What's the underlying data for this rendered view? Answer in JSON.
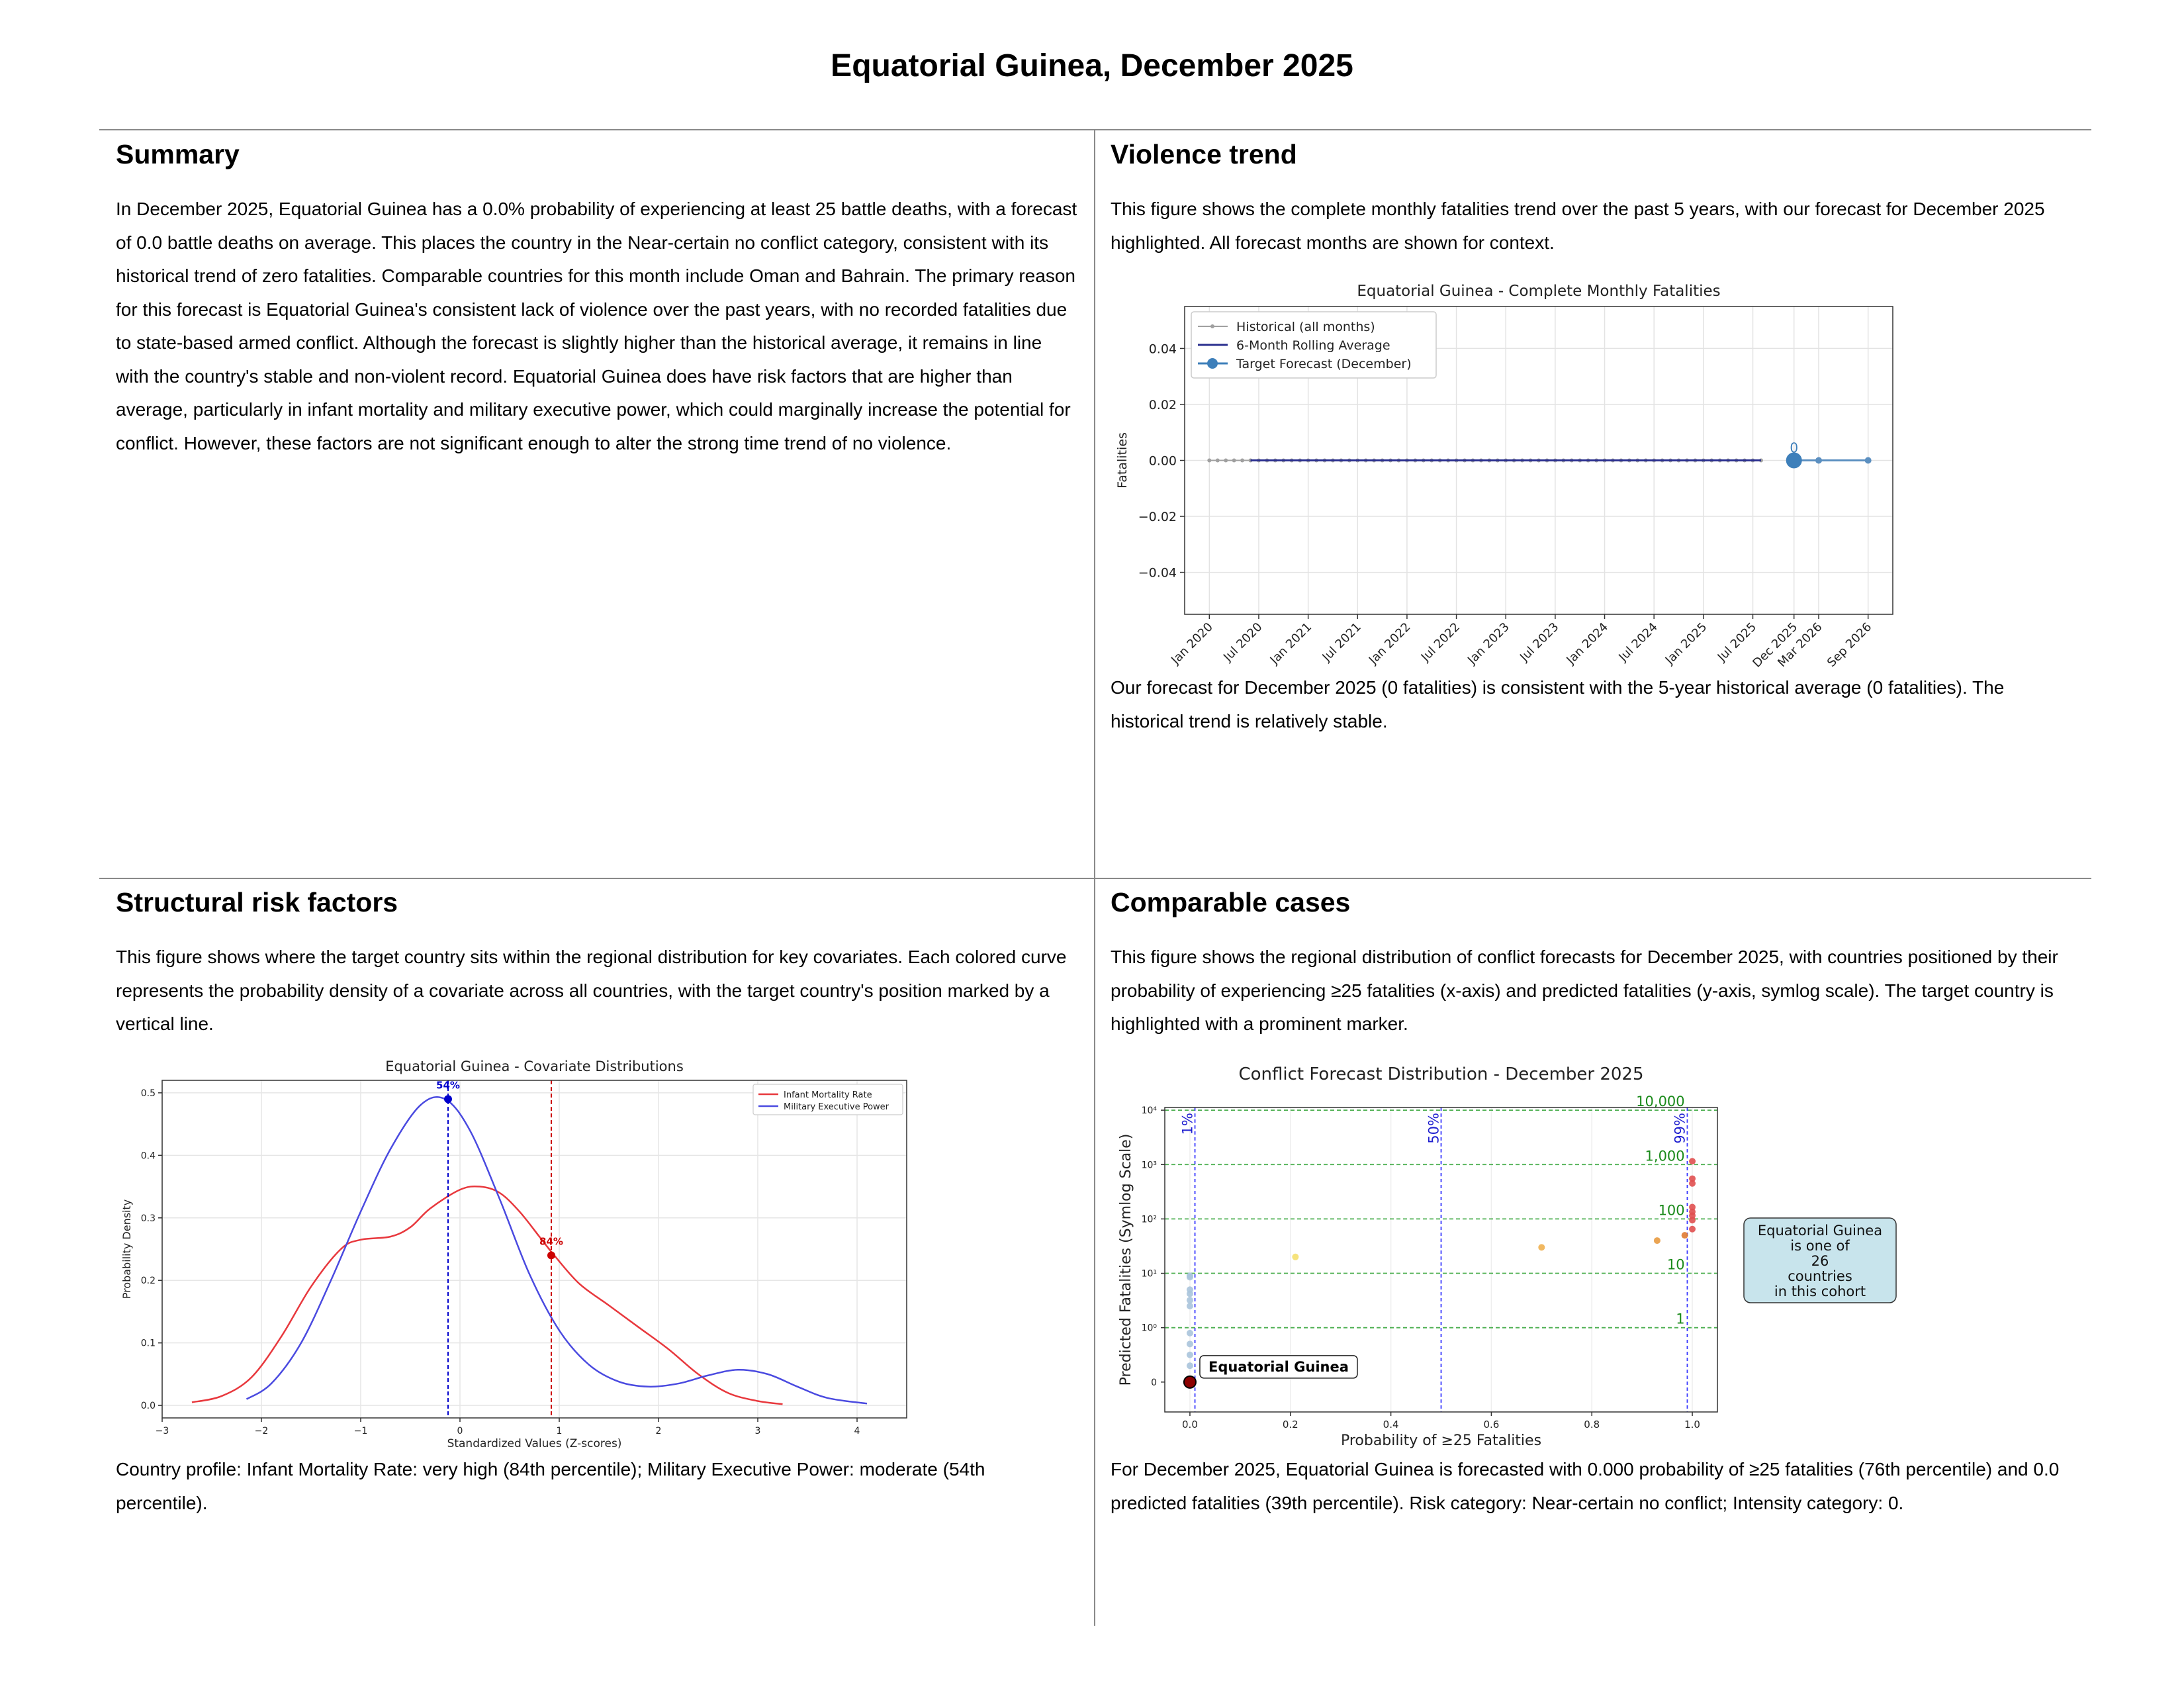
{
  "page_title": "Equatorial Guinea, December 2025",
  "summary": {
    "heading": "Summary",
    "text": "In December 2025, Equatorial Guinea has a 0.0% probability of experiencing at least 25 battle deaths, with a forecast of 0.0 battle deaths on average. This places the country in the Near-certain no conflict category, consistent with its historical trend of zero fatalities. Comparable countries for this month include Oman and Bahrain. The primary reason for this forecast is Equatorial Guinea's consistent lack of violence over the past years, with no recorded fatalities due to state-based armed conflict. Although the forecast is slightly higher than the historical average, it remains in line with the country's stable and non-violent record. Equatorial Guinea does have risk factors that are higher than average, particularly in infant mortality and military executive power, which could marginally increase the potential for conflict. However, these factors are not significant enough to alter the strong time trend of no violence."
  },
  "violence": {
    "heading": "Violence trend",
    "intro": "This figure shows the complete monthly fatalities trend over the past 5 years, with our forecast for December 2025 highlighted. All forecast months are shown for context.",
    "caption": "Our forecast for December 2025 (0 fatalities) is consistent with the 5-year historical average (0 fatalities). The historical trend is relatively stable."
  },
  "structural": {
    "heading": "Structural risk factors",
    "intro": "This figure shows where the target country sits within the regional distribution for key covariates. Each colored curve represents the probability density of a covariate across all countries, with the target country's position marked by a vertical line.",
    "caption": "Country profile: Infant Mortality Rate: very high (84th percentile); Military Executive Power: moderate (54th percentile)."
  },
  "comparable": {
    "heading": "Comparable cases",
    "intro": "This figure shows the regional distribution of conflict forecasts for December 2025, with countries positioned by their probability of experiencing ≥25 fatalities (x-axis) and predicted fatalities (y-axis, symlog scale). The target country is highlighted with a prominent marker.",
    "caption": "For December 2025, Equatorial Guinea is forecasted with 0.000 probability of ≥25 fatalities (76th percentile) and 0.0 predicted fatalities (39th percentile). Risk category: Near-certain no conflict; Intensity category: 0."
  },
  "chart_data": [
    {
      "type": "line",
      "title": "Equatorial Guinea - Complete Monthly Fatalities",
      "ylabel": "Fatalities",
      "ylim": [
        -0.055,
        0.055
      ],
      "yticks": [
        -0.04,
        -0.02,
        0.0,
        0.02,
        0.04
      ],
      "ytick_labels": [
        "−0.04",
        "−0.02",
        "0.00",
        "0.02",
        "0.04"
      ],
      "xticks": [
        "Jan 2020",
        "Jul 2020",
        "Jan 2021",
        "Jul 2021",
        "Jan 2022",
        "Jul 2022",
        "Jan 2023",
        "Jul 2023",
        "Jan 2024",
        "Jul 2024",
        "Jan 2025",
        "Jul 2025",
        "Dec 2025",
        "Mar 2026",
        "Sep 2026"
      ],
      "xtick_months": [
        0,
        6,
        12,
        18,
        24,
        30,
        36,
        42,
        48,
        54,
        60,
        66,
        71,
        74,
        80
      ],
      "grid": true,
      "legend": "upper-left",
      "legend_entries": [
        "Historical (all months)",
        "6-Month Rolling Average",
        "Target Forecast (December)"
      ],
      "historical": {
        "start_month": 0,
        "end_month": 67,
        "value": 0
      },
      "rolling_average": {
        "start_month": 5,
        "end_month": 67,
        "value": 0
      },
      "forecast": {
        "months": [
          71,
          74,
          80
        ],
        "values": [
          0,
          0,
          0
        ]
      },
      "target": {
        "month": 71,
        "value": 0,
        "label": "0"
      },
      "colors": {
        "historical": "#a0a0a0",
        "rolling": "#2a2f8f",
        "forecast": "#5b8fc0",
        "target": "#3d7fba"
      }
    },
    {
      "type": "line",
      "title": "Equatorial Guinea - Covariate Distributions",
      "xlabel": "Standardized Values (Z-scores)",
      "ylabel": "Probability Density",
      "xlim": [
        -3,
        4.5
      ],
      "ylim": [
        -0.02,
        0.52
      ],
      "xticks": [
        -3,
        -2,
        -1,
        0,
        1,
        2,
        3,
        4
      ],
      "xtick_labels": [
        "−3",
        "−2",
        "−1",
        "0",
        "1",
        "2",
        "3",
        "4"
      ],
      "yticks": [
        0.0,
        0.1,
        0.2,
        0.3,
        0.4,
        0.5
      ],
      "ytick_labels": [
        "0.0",
        "0.1",
        "0.2",
        "0.3",
        "0.4",
        "0.5"
      ],
      "grid": true,
      "legend": "upper-right",
      "series": [
        {
          "name": "Infant Mortality Rate",
          "color": "#e8383d",
          "x": [
            -2.7,
            -2.4,
            -2.1,
            -1.8,
            -1.5,
            -1.2,
            -1.0,
            -0.7,
            -0.5,
            -0.3,
            0.0,
            0.2,
            0.4,
            0.6,
            0.8,
            0.95,
            1.2,
            1.5,
            1.8,
            2.1,
            2.4,
            2.7,
            3.0,
            3.25
          ],
          "y": [
            0.005,
            0.015,
            0.045,
            0.11,
            0.19,
            0.25,
            0.265,
            0.27,
            0.285,
            0.315,
            0.345,
            0.35,
            0.34,
            0.31,
            0.27,
            0.24,
            0.195,
            0.16,
            0.125,
            0.09,
            0.05,
            0.02,
            0.007,
            0.002
          ]
        },
        {
          "name": "Military Executive Power",
          "color": "#4a4ae0",
          "x": [
            -2.15,
            -1.9,
            -1.6,
            -1.3,
            -1.0,
            -0.7,
            -0.4,
            -0.15,
            0.1,
            0.4,
            0.7,
            1.0,
            1.3,
            1.6,
            1.9,
            2.2,
            2.5,
            2.8,
            3.1,
            3.4,
            3.7,
            4.1
          ],
          "y": [
            0.01,
            0.035,
            0.1,
            0.2,
            0.31,
            0.41,
            0.48,
            0.49,
            0.44,
            0.33,
            0.21,
            0.12,
            0.065,
            0.038,
            0.03,
            0.035,
            0.048,
            0.057,
            0.05,
            0.03,
            0.012,
            0.003
          ]
        }
      ],
      "markers": [
        {
          "series": "Military Executive Power",
          "x": -0.12,
          "y": 0.49,
          "label": "54%",
          "color": "#0000cc"
        },
        {
          "series": "Infant Mortality Rate",
          "x": 0.92,
          "y": 0.24,
          "label": "84%",
          "color": "#cc0000"
        }
      ]
    },
    {
      "type": "scatter",
      "title": "Conflict Forecast Distribution - December 2025",
      "xlabel": "Probability of ≥25 Fatalities",
      "ylabel": "Predicted Fatalities (Symlog Scale)",
      "xlim": [
        -0.05,
        1.05
      ],
      "xticks": [
        0.0,
        0.2,
        0.4,
        0.6,
        0.8,
        1.0
      ],
      "xtick_labels": [
        "0.0",
        "0.2",
        "0.4",
        "0.6",
        "0.8",
        "1.0"
      ],
      "y_scale": "symlog",
      "yticks": [
        0,
        1,
        10,
        100,
        1000,
        10000
      ],
      "ytick_labels": [
        "0",
        "10⁰",
        "10¹",
        "10²",
        "10³",
        "10⁴"
      ],
      "threshold_lines": [
        {
          "value": 1,
          "label": "1"
        },
        {
          "value": 10,
          "label": "10"
        },
        {
          "value": 100,
          "label": "100"
        },
        {
          "value": 1000,
          "label": "1,000"
        },
        {
          "value": 10000,
          "label": "10,000"
        }
      ],
      "prob_lines": [
        {
          "value": 0.01,
          "label": "1%"
        },
        {
          "value": 0.5,
          "label": "50%"
        },
        {
          "value": 0.99,
          "label": "99%"
        }
      ],
      "points": [
        {
          "x": 0.0,
          "y": 0.3,
          "color": "#aac4dc"
        },
        {
          "x": 0.0,
          "y": 0.5,
          "color": "#aac4dc"
        },
        {
          "x": 0.0,
          "y": 0.7,
          "color": "#aac4dc"
        },
        {
          "x": 0.0,
          "y": 0.9,
          "color": "#aac4dc"
        },
        {
          "x": 0.0,
          "y": 2.5,
          "color": "#aac4dc"
        },
        {
          "x": 0.0,
          "y": 3.2,
          "color": "#aac4dc"
        },
        {
          "x": 0.0,
          "y": 4.2,
          "color": "#aac4dc"
        },
        {
          "x": 0.0,
          "y": 5.0,
          "color": "#aac4dc"
        },
        {
          "x": 0.0,
          "y": 8.5,
          "color": "#aac4dc"
        },
        {
          "x": 0.0,
          "y": 9.0,
          "color": "#aac4dc"
        },
        {
          "x": 0.21,
          "y": 20,
          "color": "#f5e06e"
        },
        {
          "x": 0.7,
          "y": 30,
          "color": "#f0b050"
        },
        {
          "x": 0.93,
          "y": 40,
          "color": "#e89a40"
        },
        {
          "x": 0.985,
          "y": 50,
          "color": "#e07a30"
        },
        {
          "x": 1.0,
          "y": 65,
          "color": "#e05050"
        },
        {
          "x": 1.0,
          "y": 95,
          "color": "#e05050"
        },
        {
          "x": 1.0,
          "y": 115,
          "color": "#e05050"
        },
        {
          "x": 1.0,
          "y": 135,
          "color": "#e05050"
        },
        {
          "x": 1.0,
          "y": 165,
          "color": "#e05050"
        },
        {
          "x": 1.0,
          "y": 450,
          "color": "#e05050"
        },
        {
          "x": 1.0,
          "y": 550,
          "color": "#e05050"
        },
        {
          "x": 1.0,
          "y": 1150,
          "color": "#e05050"
        }
      ],
      "target": {
        "x": 0.0,
        "y": 0.0,
        "label": "Equatorial Guinea",
        "color": "#8b0000"
      },
      "cohort_note": [
        "Equatorial Guinea",
        "is one of",
        "26",
        "countries",
        "in this cohort"
      ]
    }
  ]
}
